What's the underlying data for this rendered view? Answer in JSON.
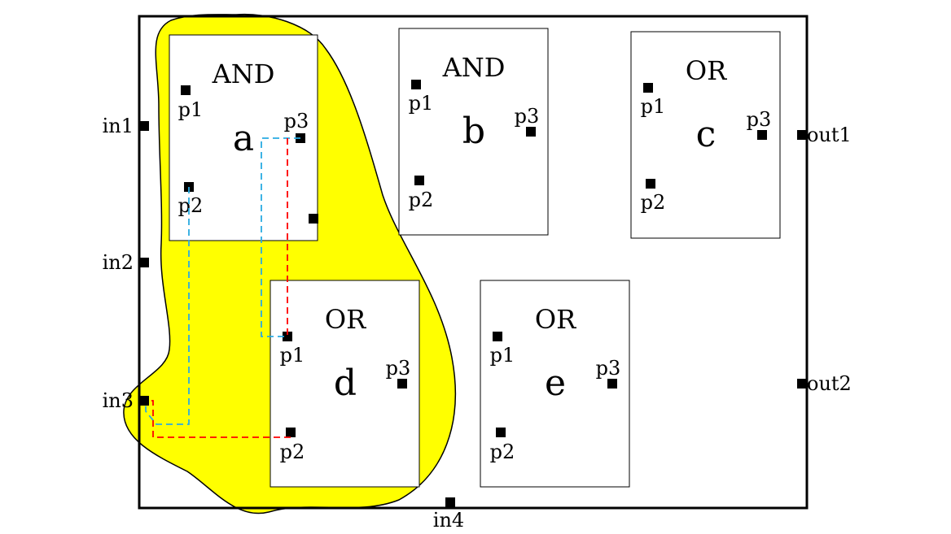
{
  "colors": {
    "highlight": "#ffff00",
    "path_blue": "#29abe2",
    "path_red": "#ff0000",
    "stroke": "#000000",
    "background": "#ffffff"
  },
  "io_pins": {
    "in1": "in1",
    "in2": "in2",
    "in3": "in3",
    "in4": "in4",
    "out1": "out1",
    "out2": "out2"
  },
  "gates": [
    {
      "id": "a",
      "type": "AND",
      "letter": "a",
      "pins": [
        "p1",
        "p2",
        "p3"
      ]
    },
    {
      "id": "b",
      "type": "AND",
      "letter": "b",
      "pins": [
        "p1",
        "p2",
        "p3"
      ]
    },
    {
      "id": "c",
      "type": "OR",
      "letter": "c",
      "pins": [
        "p1",
        "p2",
        "p3"
      ]
    },
    {
      "id": "d",
      "type": "OR",
      "letter": "d",
      "pins": [
        "p1",
        "p2",
        "p3"
      ]
    },
    {
      "id": "e",
      "type": "OR",
      "letter": "e",
      "pins": [
        "p1",
        "p2",
        "p3"
      ]
    }
  ]
}
